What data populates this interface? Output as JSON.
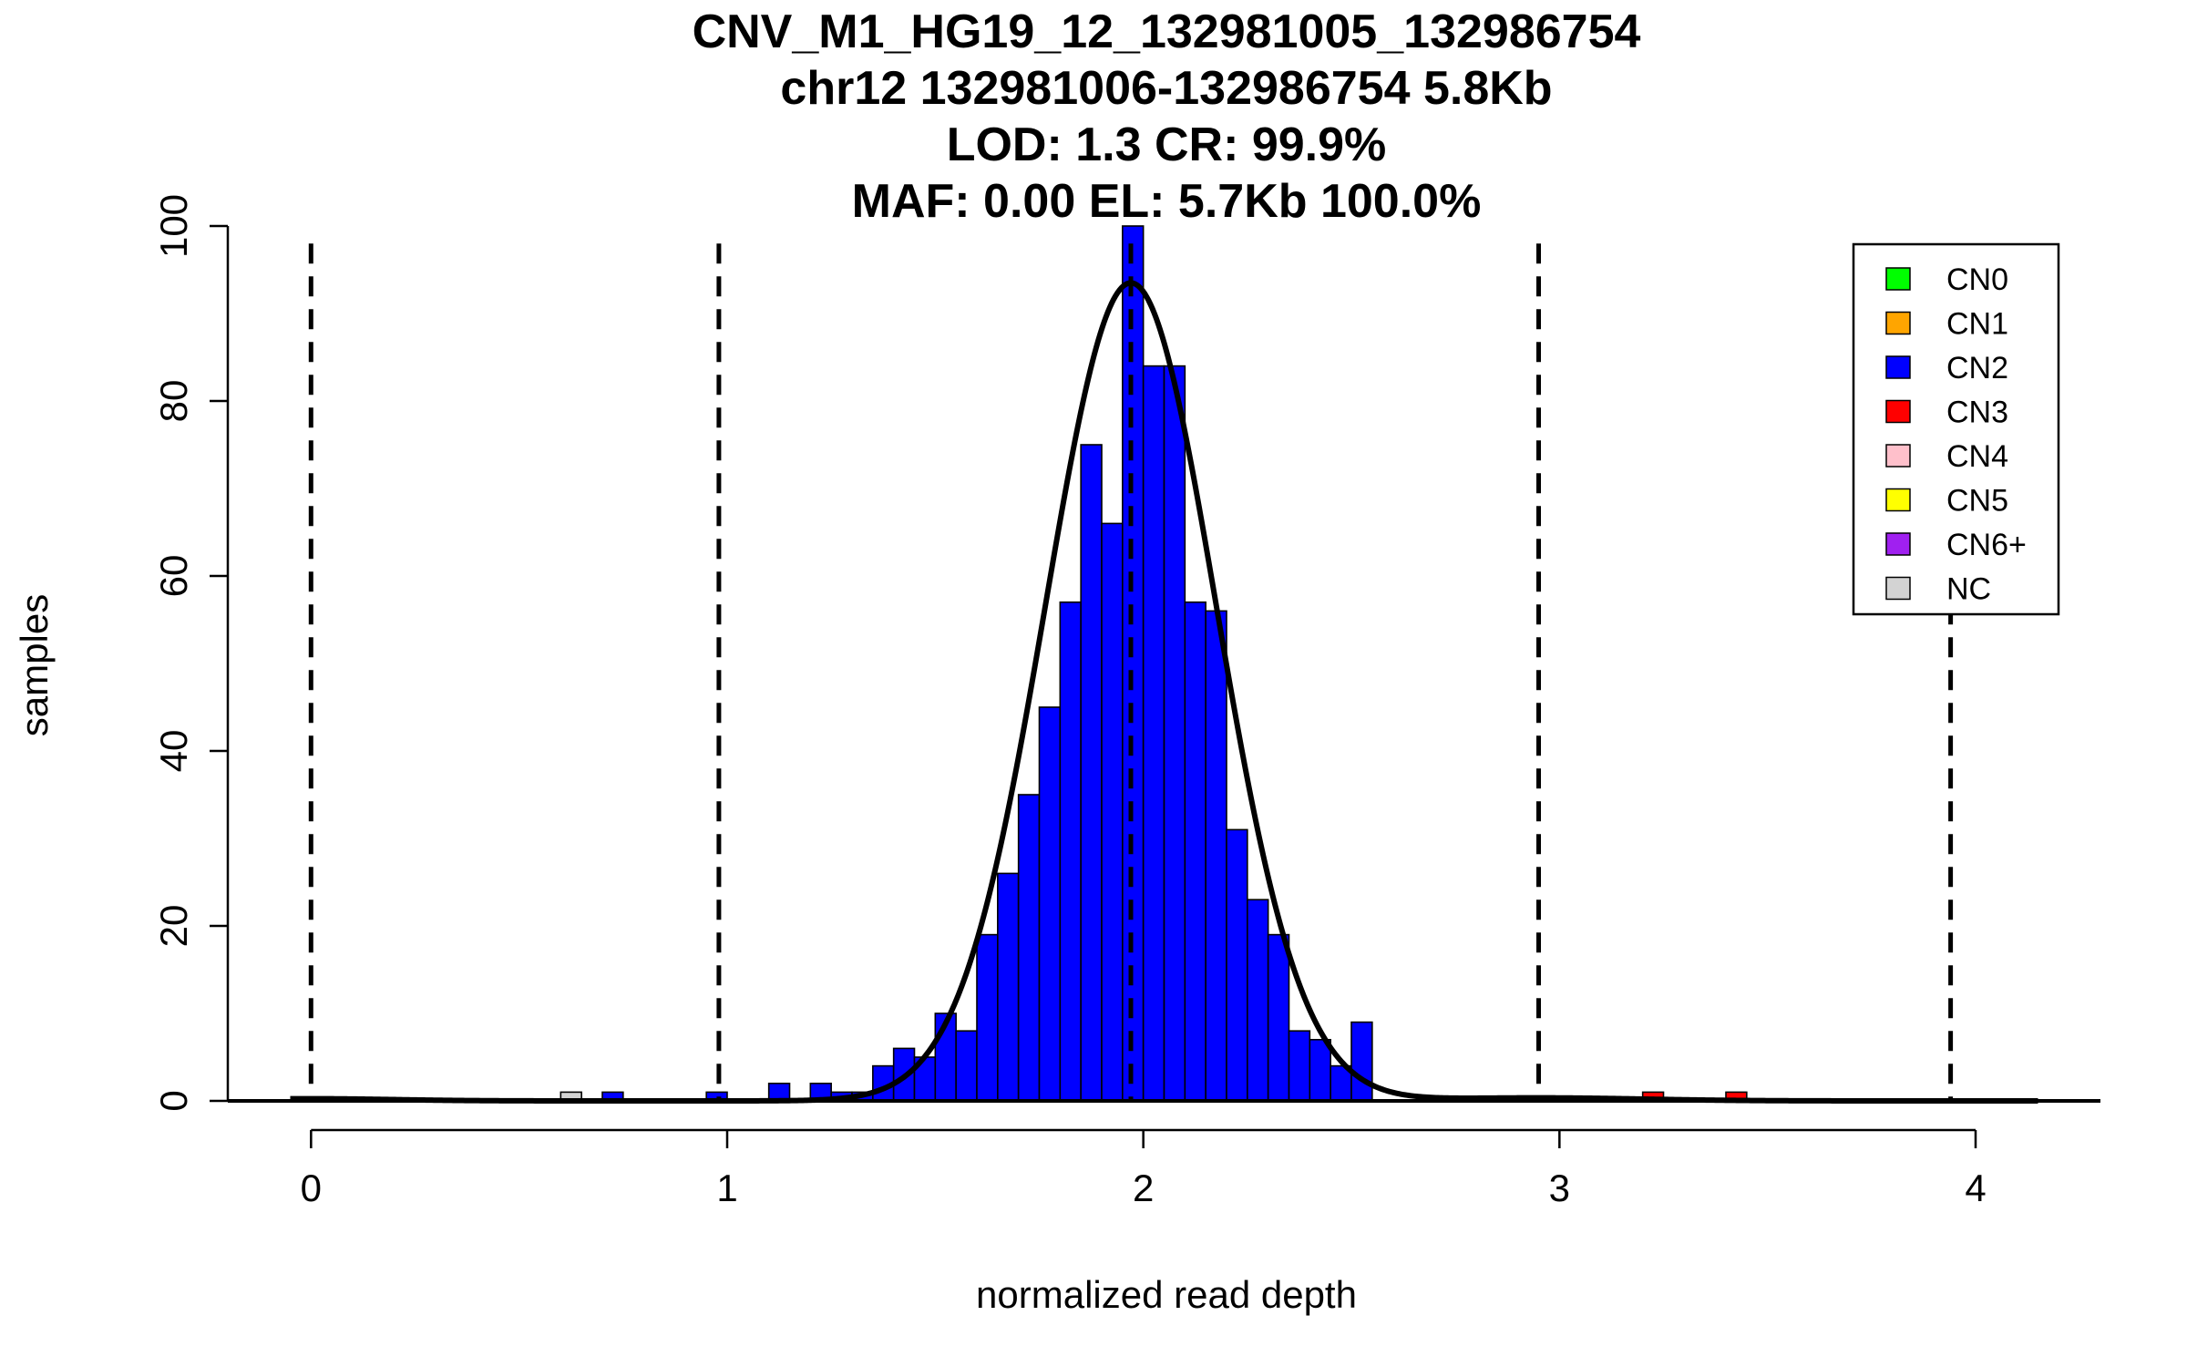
{
  "chart_data": {
    "type": "bar",
    "title_lines": [
      "CNV_M1_HG19_12_132981005_132986754",
      "chr12 132981006-132986754 5.8Kb",
      "LOD: 1.3 CR: 99.9%",
      "MAF: 0.00 EL: 5.7Kb 100.0%"
    ],
    "xlabel": "normalized read depth",
    "ylabel": "samples",
    "xlim": [
      -0.2,
      4.3
    ],
    "ylim": [
      0,
      100
    ],
    "x_ticks": [
      "0",
      "1",
      "2",
      "3",
      "4"
    ],
    "y_ticks": [
      "0",
      "20",
      "40",
      "60",
      "80",
      "100"
    ],
    "bin_width": 0.05,
    "bars": [
      {
        "x": 0.6,
        "count": 1,
        "class": "NC"
      },
      {
        "x": 0.7,
        "count": 1,
        "class": "CN2"
      },
      {
        "x": 0.95,
        "count": 1,
        "class": "CN2"
      },
      {
        "x": 1.1,
        "count": 2,
        "class": "CN2"
      },
      {
        "x": 1.2,
        "count": 2,
        "class": "CN2"
      },
      {
        "x": 1.25,
        "count": 1,
        "class": "CN2"
      },
      {
        "x": 1.3,
        "count": 1,
        "class": "CN2"
      },
      {
        "x": 1.35,
        "count": 4,
        "class": "CN2"
      },
      {
        "x": 1.4,
        "count": 6,
        "class": "CN2"
      },
      {
        "x": 1.45,
        "count": 5,
        "class": "CN2"
      },
      {
        "x": 1.5,
        "count": 10,
        "class": "CN2"
      },
      {
        "x": 1.55,
        "count": 8,
        "class": "CN2"
      },
      {
        "x": 1.6,
        "count": 19,
        "class": "CN2"
      },
      {
        "x": 1.65,
        "count": 26,
        "class": "CN2"
      },
      {
        "x": 1.7,
        "count": 35,
        "class": "CN2"
      },
      {
        "x": 1.75,
        "count": 45,
        "class": "CN2"
      },
      {
        "x": 1.8,
        "count": 57,
        "class": "CN2"
      },
      {
        "x": 1.85,
        "count": 75,
        "class": "CN2"
      },
      {
        "x": 1.9,
        "count": 66,
        "class": "CN2"
      },
      {
        "x": 1.95,
        "count": 100,
        "class": "CN2"
      },
      {
        "x": 2.0,
        "count": 84,
        "class": "CN2"
      },
      {
        "x": 2.05,
        "count": 84,
        "class": "CN2"
      },
      {
        "x": 2.1,
        "count": 57,
        "class": "CN2"
      },
      {
        "x": 2.15,
        "count": 56,
        "class": "CN2"
      },
      {
        "x": 2.2,
        "count": 31,
        "class": "CN2"
      },
      {
        "x": 2.25,
        "count": 23,
        "class": "CN2"
      },
      {
        "x": 2.3,
        "count": 19,
        "class": "CN2"
      },
      {
        "x": 2.35,
        "count": 8,
        "class": "CN2"
      },
      {
        "x": 2.4,
        "count": 7,
        "class": "CN2"
      },
      {
        "x": 2.45,
        "count": 4,
        "class": "CN2"
      },
      {
        "x": 2.5,
        "count": 9,
        "class": "CN2"
      },
      {
        "x": 3.2,
        "count": 1,
        "class": "CN3"
      },
      {
        "x": 3.4,
        "count": 1,
        "class": "CN3"
      }
    ],
    "cn_boundaries": [
      0,
      0.98,
      1.97,
      2.95,
      3.94
    ],
    "fit_curves": [
      {
        "mean": 1.97,
        "sd": 0.205,
        "peak": 93.5
      },
      {
        "mean": 2.95,
        "sd": 0.25,
        "peak": 0.35
      },
      {
        "mean": 0.0,
        "sd": 0.2,
        "peak": 0.25
      }
    ],
    "legend": {
      "placement": "top-right",
      "entries": [
        {
          "label": "CN0",
          "class": "CN0",
          "color": "#00ff00"
        },
        {
          "label": "CN1",
          "class": "CN1",
          "color": "#ffa500"
        },
        {
          "label": "CN2",
          "class": "CN2",
          "color": "#0000ff"
        },
        {
          "label": "CN3",
          "class": "CN3",
          "color": "#ff0000"
        },
        {
          "label": "CN4",
          "class": "CN4",
          "color": "#ffc0cb"
        },
        {
          "label": "CN5",
          "class": "CN5",
          "color": "#ffff00"
        },
        {
          "label": "CN6+",
          "class": "CN6+",
          "color": "#a020f0"
        },
        {
          "label": "NC",
          "class": "NC",
          "color": "#d3d3d3"
        }
      ]
    },
    "grid": false
  }
}
